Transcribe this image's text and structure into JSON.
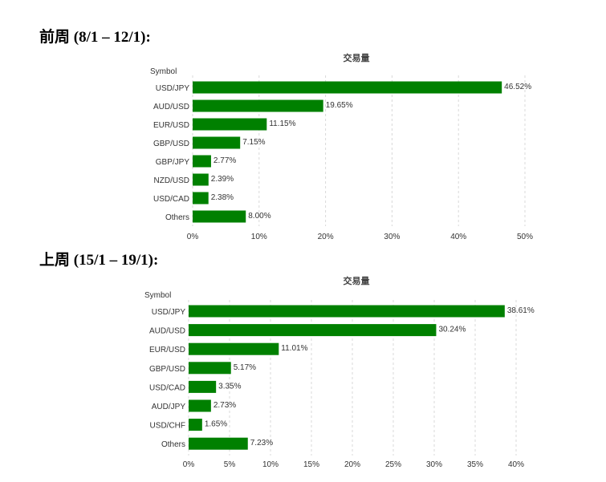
{
  "headings": [
    "前周 (8/1 – 12/1):",
    "上周 (15/1 – 19/1):"
  ],
  "chart_data": [
    {
      "type": "bar",
      "orientation": "horizontal",
      "title": "交易量",
      "ylabel": "Symbol",
      "categories": [
        "USD/JPY",
        "AUD/USD",
        "EUR/USD",
        "GBP/USD",
        "GBP/JPY",
        "NZD/USD",
        "USD/CAD",
        "Others"
      ],
      "values": [
        46.52,
        19.65,
        11.15,
        7.15,
        2.77,
        2.39,
        2.38,
        8.0
      ],
      "value_labels": [
        "46.52%",
        "19.65%",
        "11.15%",
        "7.15%",
        "2.77%",
        "2.39%",
        "2.38%",
        "8.00%"
      ],
      "xlim": [
        0,
        50
      ],
      "xticks": [
        0,
        10,
        20,
        30,
        40,
        50
      ],
      "xtick_labels": [
        "0%",
        "10%",
        "20%",
        "30%",
        "40%",
        "50%"
      ],
      "grid": "vertical dashed",
      "color": "#008000"
    },
    {
      "type": "bar",
      "orientation": "horizontal",
      "title": "交易量",
      "ylabel": "Symbol",
      "categories": [
        "USD/JPY",
        "AUD/USD",
        "EUR/USD",
        "GBP/USD",
        "USD/CAD",
        "AUD/JPY",
        "USD/CHF",
        "Others"
      ],
      "values": [
        38.61,
        30.24,
        11.01,
        5.17,
        3.35,
        2.73,
        1.65,
        7.23
      ],
      "value_labels": [
        "38.61%",
        "30.24%",
        "11.01%",
        "5.17%",
        "3.35%",
        "2.73%",
        "1.65%",
        "7.23%"
      ],
      "xlim": [
        0,
        40
      ],
      "xticks": [
        0,
        5,
        10,
        15,
        20,
        25,
        30,
        35,
        40
      ],
      "xtick_labels": [
        "0%",
        "5%",
        "10%",
        "15%",
        "20%",
        "25%",
        "30%",
        "35%",
        "40%"
      ],
      "grid": "vertical dashed",
      "color": "#008000"
    }
  ]
}
